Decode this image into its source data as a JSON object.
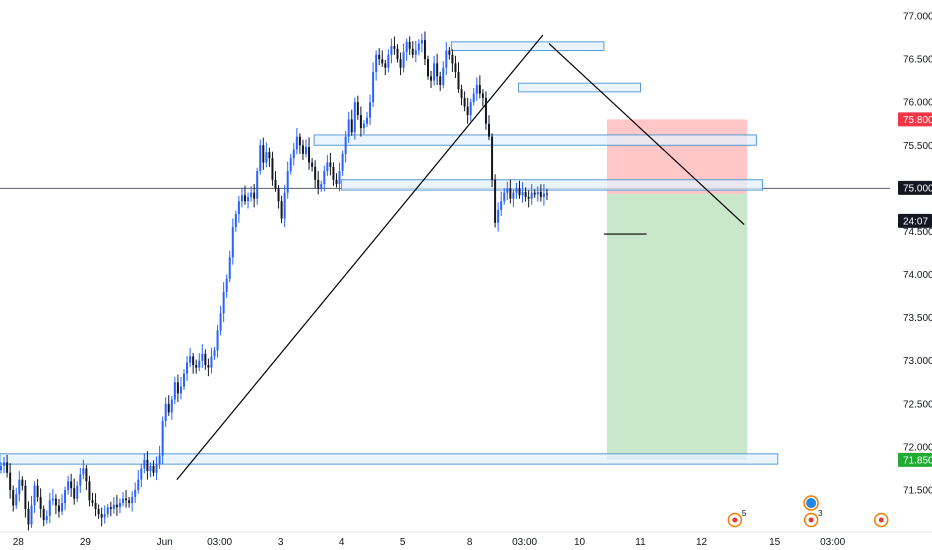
{
  "colors": {
    "up": "#2962ff",
    "down": "#131722",
    "zone_fill": "#e3f2fd",
    "zone_stroke": "#5b9bd5",
    "trendline": "#000000",
    "stop_zone": "rgba(255,82,82,0.32)",
    "target_zone": "rgba(76,175,80,0.30)",
    "stop_badge": "#f23645",
    "target_badge": "#22ab33",
    "last_price_badge": "#131722",
    "event_ring": "#f57c00",
    "event_dot": "#e53935",
    "event_globe": "#1e88e5"
  },
  "chart_data": {
    "type": "candlestick",
    "y_axis": {
      "min": 71.0,
      "max": 77.1,
      "ticks": [
        "77.000",
        "76.500",
        "76.000",
        "75.500",
        "75.000",
        "74.500",
        "74.000",
        "73.500",
        "73.000",
        "72.500",
        "72.000",
        "71.500"
      ],
      "tick_values": [
        77.0,
        76.5,
        76.0,
        75.5,
        75.0,
        74.5,
        74.0,
        73.5,
        73.0,
        72.5,
        72.0,
        71.5
      ]
    },
    "x_axis": {
      "tick_labels": [
        "28",
        "29",
        "Jun",
        "03:00",
        "3",
        "4",
        "5",
        "8",
        "03:00",
        "10",
        "11",
        "12",
        "15",
        "03:00"
      ],
      "tick_bar_index": [
        6,
        28,
        54,
        72,
        92,
        112,
        132,
        154,
        172,
        190,
        210,
        230,
        254,
        273
      ]
    },
    "price_badges": {
      "stop": "75.800",
      "horizontal_line": "75.000",
      "last_price": "74.936",
      "countdown": "24:07",
      "target": "71.850"
    },
    "horizontal_line_price": 75.0,
    "candles_close": [
      71.78,
      71.82,
      71.7,
      71.5,
      71.32,
      71.45,
      71.62,
      71.55,
      71.28,
      71.1,
      71.32,
      71.55,
      71.42,
      71.28,
      71.15,
      71.2,
      71.38,
      71.4,
      71.32,
      71.25,
      71.35,
      71.5,
      71.6,
      71.52,
      71.4,
      71.55,
      71.68,
      71.75,
      71.6,
      71.38,
      71.35,
      71.28,
      71.22,
      71.18,
      71.22,
      71.3,
      71.28,
      71.33,
      71.3,
      71.35,
      71.4,
      71.38,
      71.35,
      71.42,
      71.5,
      71.62,
      71.75,
      71.85,
      71.72,
      71.78,
      71.7,
      71.8,
      71.9,
      72.3,
      72.5,
      72.4,
      72.55,
      72.75,
      72.62,
      72.7,
      72.85,
      72.98,
      73.05,
      72.95,
      72.92,
      73.0,
      73.08,
      72.95,
      72.92,
      73.05,
      73.12,
      73.35,
      73.55,
      73.8,
      73.95,
      74.2,
      74.55,
      74.7,
      74.85,
      74.92,
      74.85,
      74.9,
      74.95,
      74.88,
      75.2,
      75.5,
      75.3,
      75.42,
      75.35,
      75.1,
      75.0,
      74.85,
      74.65,
      74.95,
      75.2,
      75.35,
      75.45,
      75.6,
      75.5,
      75.4,
      75.48,
      75.3,
      75.25,
      75.1,
      75.0,
      75.05,
      75.2,
      75.3,
      75.25,
      75.1,
      75.05,
      75.2,
      75.4,
      75.6,
      75.8,
      75.65,
      76.0,
      75.85,
      75.7,
      75.75,
      75.82,
      76.0,
      76.35,
      76.55,
      76.5,
      76.45,
      76.4,
      76.55,
      76.65,
      76.62,
      76.5,
      76.4,
      76.58,
      76.7,
      76.62,
      76.55,
      76.6,
      76.68,
      76.72,
      76.5,
      76.3,
      76.25,
      76.45,
      76.3,
      76.2,
      76.4,
      76.6,
      76.55,
      76.45,
      76.35,
      76.15,
      76.05,
      75.95,
      75.85,
      76.0,
      76.1,
      76.2,
      76.1,
      76.05,
      75.75,
      75.6,
      75.1,
      74.6,
      74.75,
      74.85,
      74.95,
      75.0,
      74.88,
      74.95,
      75.0,
      74.92,
      74.96,
      74.9,
      74.88,
      74.95,
      74.93,
      74.96,
      74.9,
      74.94,
      74.936
    ],
    "zones": [
      {
        "from_bar": 0,
        "to_bar": 255,
        "top": 71.92,
        "bottom": 71.8
      },
      {
        "from_bar": 112,
        "to_bar": 250,
        "top": 75.1,
        "bottom": 74.98
      },
      {
        "from_bar": 103,
        "to_bar": 248,
        "top": 75.62,
        "bottom": 75.5
      },
      {
        "from_bar": 148,
        "to_bar": 198,
        "top": 76.7,
        "bottom": 76.6
      },
      {
        "from_bar": 170,
        "to_bar": 210,
        "top": 76.22,
        "bottom": 76.12
      }
    ],
    "trendlines": [
      {
        "from_bar": 58,
        "from_price": 71.62,
        "to_bar": 178,
        "to_price": 76.78
      },
      {
        "from_bar": 180,
        "from_price": 76.68,
        "to_bar": 244,
        "to_price": 74.58
      },
      {
        "from_bar": 198,
        "from_price": 74.47,
        "to_bar": 212,
        "to_price": 74.47
      }
    ],
    "position": {
      "from_bar": 199,
      "to_bar": 245,
      "entry": 74.936,
      "stop": 75.8,
      "target": 71.85
    },
    "events": [
      {
        "bar": 237,
        "kind": "ring-dot",
        "count": "5"
      },
      {
        "bar": 262,
        "kind": "ring-dot",
        "count": "3"
      },
      {
        "bar": 262,
        "kind": "globe",
        "count": ""
      },
      {
        "bar": 285,
        "kind": "ring-dot",
        "count": ""
      },
      {
        "bar": 305,
        "kind": "globe",
        "count": ""
      }
    ]
  }
}
